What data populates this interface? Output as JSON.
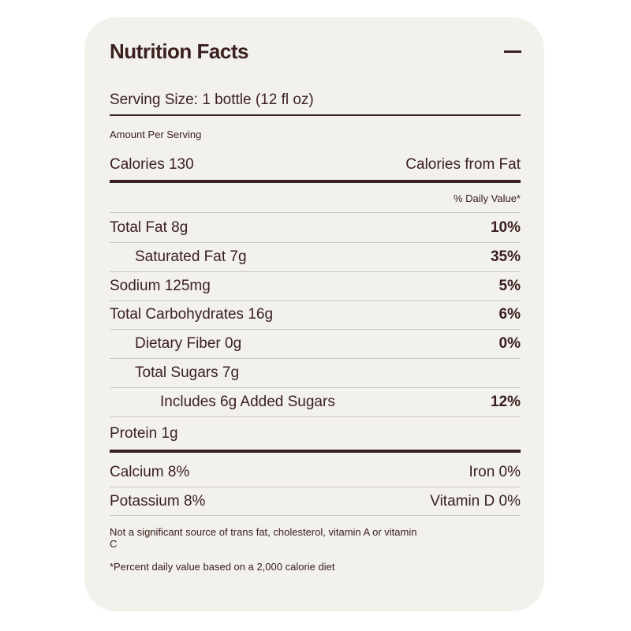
{
  "header": {
    "title": "Nutrition Facts"
  },
  "serving_size": "Serving Size: 1 bottle (12 fl oz)",
  "amount_per_serving": "Amount Per Serving",
  "calories": {
    "label": "Calories 130",
    "from_fat": "Calories from Fat"
  },
  "daily_value_header": "% Daily Value*",
  "nutrients": [
    {
      "label": "Total Fat 8g",
      "daily_value": "10%"
    },
    {
      "label": "Saturated Fat 7g",
      "daily_value": "35%"
    },
    {
      "label": "Sodium 125mg",
      "daily_value": "5%"
    },
    {
      "label": "Total Carbohydrates 16g",
      "daily_value": "6%"
    },
    {
      "label": "Dietary Fiber 0g",
      "daily_value": "0%"
    },
    {
      "label": "Total Sugars 7g"
    },
    {
      "label": "Includes 6g Added Sugars",
      "daily_value": "12%"
    }
  ],
  "protein": "Protein 1g",
  "vitamins": [
    [
      "Calcium 8%",
      "Iron 0%"
    ],
    [
      "Potassium 8%",
      "Vitamin D 0%"
    ]
  ],
  "footnotes": [
    "Not a significant source of trans fat, cholesterol, vitamin A or vitamin C",
    "*Percent daily value based on a 2,000 calorie diet"
  ]
}
